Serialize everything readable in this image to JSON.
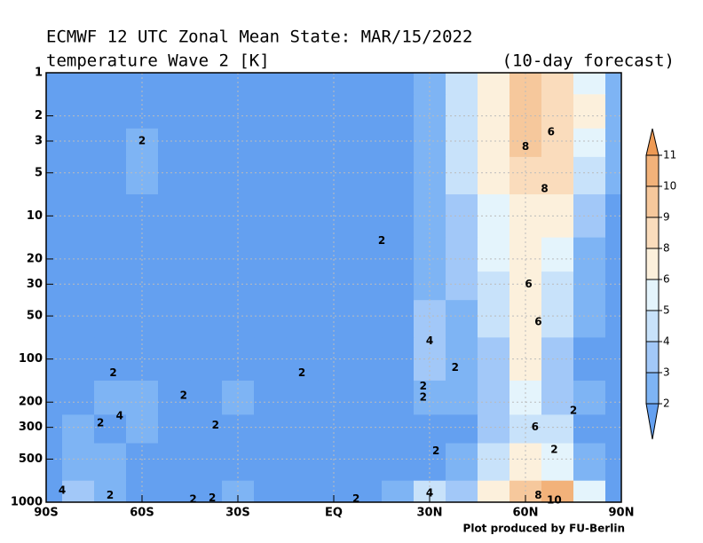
{
  "chart_data": {
    "type": "contour",
    "title": "ECMWF 12 UTC Zonal Mean State: MAR/15/2022",
    "subtitle": "temperature Wave 2 [K]",
    "note": "(10-day forecast)",
    "footer": "Plot produced by FU-Berlin",
    "x": [
      -90,
      -80,
      -70,
      -60,
      -50,
      -40,
      -30,
      -20,
      -10,
      0,
      10,
      20,
      30,
      40,
      50,
      60,
      70,
      80,
      90
    ],
    "y": [
      1,
      2,
      3,
      5,
      10,
      20,
      30,
      50,
      100,
      200,
      300,
      500,
      1000
    ],
    "values": [
      [
        1.5,
        1.5,
        1.5,
        1.5,
        1.5,
        1.5,
        1.5,
        1.5,
        1.5,
        1.5,
        1.5,
        1.5,
        2.5,
        4,
        6,
        9,
        8,
        5,
        2
      ],
      [
        1.5,
        1.5,
        1.5,
        1.5,
        1.5,
        1.5,
        1.5,
        1.5,
        1.5,
        1.5,
        1.5,
        1.5,
        2.5,
        4,
        6,
        9,
        8,
        6,
        2
      ],
      [
        1.5,
        1.5,
        1.5,
        2.5,
        1.5,
        1.5,
        1.5,
        1.5,
        1.5,
        1.5,
        1.5,
        1.5,
        2.5,
        4,
        7,
        9,
        8,
        5,
        2
      ],
      [
        1.5,
        1.5,
        1.5,
        2.5,
        1.5,
        1.5,
        1.5,
        1.5,
        1.5,
        1.5,
        1.5,
        1.5,
        2.5,
        4,
        6,
        8.5,
        8,
        4,
        2
      ],
      [
        1.5,
        1.5,
        1.5,
        1.5,
        1.5,
        1.5,
        1.5,
        1.5,
        1.5,
        1.5,
        1.5,
        1.5,
        2,
        3.5,
        5.5,
        7,
        6,
        3,
        1.5
      ],
      [
        1.5,
        1.5,
        1.5,
        1.5,
        1.5,
        1.5,
        1.5,
        1.5,
        1.5,
        1.5,
        1.5,
        1.5,
        2,
        3,
        5,
        6.5,
        5,
        2.5,
        1.5
      ],
      [
        1.5,
        1.5,
        1.5,
        1.5,
        1.5,
        1.5,
        1.5,
        1.5,
        1.5,
        1.5,
        1.5,
        1.5,
        2,
        3,
        4.5,
        6,
        4.5,
        2,
        1.5
      ],
      [
        1.5,
        1.5,
        1.5,
        1.5,
        1.5,
        1.5,
        1.5,
        1.5,
        1.5,
        1.5,
        1.5,
        1.5,
        3.5,
        2.5,
        4,
        6.5,
        4,
        2,
        1.5
      ],
      [
        1.5,
        1.5,
        1.5,
        1.5,
        1.5,
        1.5,
        1.5,
        1.5,
        1.5,
        1.5,
        1.5,
        1.5,
        3,
        2,
        3.5,
        7,
        3.5,
        1.5,
        1.5
      ],
      [
        1.5,
        1.5,
        2.5,
        2.5,
        1.5,
        1.5,
        2,
        1.5,
        1.5,
        1.5,
        1.5,
        1.5,
        2.5,
        2,
        3,
        5,
        3,
        2.5,
        1.5
      ],
      [
        1.5,
        2,
        1.5,
        2.5,
        1.5,
        1.5,
        1.5,
        1.5,
        1.5,
        1.5,
        1.5,
        1.5,
        1.5,
        1.5,
        3,
        4.5,
        4,
        1.5,
        1.5
      ],
      [
        1.5,
        2.5,
        2.5,
        1.5,
        1.5,
        1.5,
        1.5,
        1.5,
        1.5,
        1.5,
        1.5,
        1.5,
        1.5,
        2,
        4,
        6,
        5,
        2,
        1.5
      ],
      [
        1.5,
        3,
        2.5,
        1.5,
        1.5,
        1.5,
        2,
        1.5,
        1.5,
        1.5,
        1.5,
        2,
        4,
        3,
        7,
        9,
        10.5,
        5,
        1.5
      ]
    ],
    "xlim": [
      -90,
      90
    ],
    "ylim": [
      1000,
      1
    ],
    "log_y": true,
    "xticks": [
      {
        "value": -90,
        "label": "90S"
      },
      {
        "value": -60,
        "label": "60S"
      },
      {
        "value": -30,
        "label": "30S"
      },
      {
        "value": 0,
        "label": "EQ"
      },
      {
        "value": 30,
        "label": "30N"
      },
      {
        "value": 60,
        "label": "60N"
      },
      {
        "value": 90,
        "label": "90N"
      }
    ],
    "yticks": [
      1,
      2,
      3,
      5,
      10,
      20,
      30,
      50,
      100,
      200,
      300,
      500,
      1000
    ],
    "grid": true,
    "levels": [
      2,
      3,
      4,
      5,
      6,
      8,
      9,
      10,
      11
    ],
    "colors": [
      "#64a0f0",
      "#7eb4f4",
      "#a2c8f8",
      "#c8e2fa",
      "#e4f4fc",
      "#fcf0dc",
      "#fadcbc",
      "#f6c89c",
      "#f2b27a",
      "#ee9a54"
    ],
    "annotations": [
      {
        "text": "2",
        "x": -60,
        "y": 3
      },
      {
        "text": "2",
        "x": 15,
        "y": 15
      },
      {
        "text": "8",
        "x": 60,
        "y": 3.3
      },
      {
        "text": "6",
        "x": 68,
        "y": 2.6
      },
      {
        "text": "8",
        "x": 66,
        "y": 6.5
      },
      {
        "text": "6",
        "x": 61,
        "y": 30
      },
      {
        "text": "6",
        "x": 64,
        "y": 55
      },
      {
        "text": "4",
        "x": 30,
        "y": 75
      },
      {
        "text": "2",
        "x": 38,
        "y": 115
      },
      {
        "text": "2",
        "x": -69,
        "y": 125
      },
      {
        "text": "2",
        "x": -10,
        "y": 125
      },
      {
        "text": "2",
        "x": -47,
        "y": 180
      },
      {
        "text": "2",
        "x": 28,
        "y": 155
      },
      {
        "text": "2",
        "x": 28,
        "y": 185
      },
      {
        "text": "4",
        "x": -67,
        "y": 250
      },
      {
        "text": "2",
        "x": -73,
        "y": 280
      },
      {
        "text": "2",
        "x": -37,
        "y": 290
      },
      {
        "text": "6",
        "x": 63,
        "y": 300
      },
      {
        "text": "2",
        "x": 75,
        "y": 230
      },
      {
        "text": "2",
        "x": 69,
        "y": 430
      },
      {
        "text": "2",
        "x": 32,
        "y": 440
      },
      {
        "text": "4",
        "x": -85,
        "y": 830
      },
      {
        "text": "2",
        "x": -70,
        "y": 900
      },
      {
        "text": "2",
        "x": -44,
        "y": 960
      },
      {
        "text": "2",
        "x": -38,
        "y": 940
      },
      {
        "text": "2",
        "x": 7,
        "y": 950
      },
      {
        "text": "4",
        "x": 30,
        "y": 870
      },
      {
        "text": "8",
        "x": 64,
        "y": 900
      },
      {
        "text": "10",
        "x": 69,
        "y": 970
      }
    ]
  }
}
